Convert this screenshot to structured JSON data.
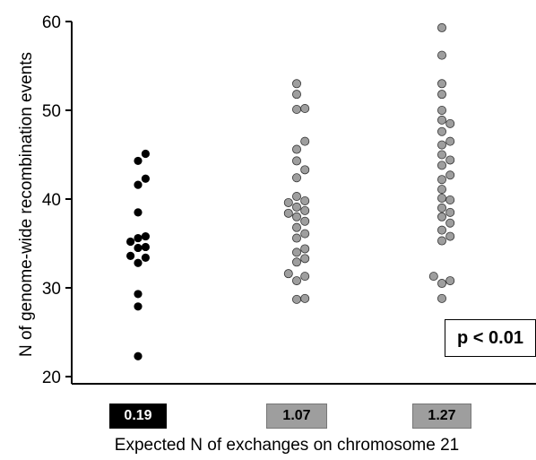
{
  "chart_data": {
    "type": "scatter",
    "xlabel": "Expected N of exchanges on chromosome 21",
    "ylabel": "N of genome-wide recombination events",
    "ylim": [
      20,
      60
    ],
    "yticks": [
      "20",
      "30",
      "40",
      "50",
      "60"
    ],
    "categories": [
      "0.19",
      "1.07",
      "1.27"
    ],
    "category_colors": [
      "#000000",
      "#9e9e9e",
      "#9e9e9e"
    ],
    "annotation": "p < 0.01",
    "series": [
      {
        "category": "0.19",
        "color": "#000000",
        "values": [
          45.1,
          44.3,
          42.3,
          41.6,
          38.5,
          35.8,
          35.6,
          35.2,
          34.6,
          34.5,
          33.6,
          33.4,
          32.8,
          29.3,
          27.9,
          22.3
        ]
      },
      {
        "category": "1.07",
        "color": "#9e9e9e",
        "values": [
          53.0,
          51.8,
          50.2,
          50.1,
          46.5,
          45.6,
          44.3,
          43.3,
          42.4,
          40.3,
          39.8,
          39.6,
          39.1,
          38.7,
          38.4,
          38.0,
          37.5,
          36.8,
          36.1,
          35.6,
          34.4,
          34.0,
          33.3,
          32.9,
          31.6,
          31.3,
          30.8,
          28.8,
          28.7
        ]
      },
      {
        "category": "1.27",
        "color": "#9e9e9e",
        "values": [
          59.3,
          56.2,
          53.0,
          51.8,
          50.0,
          48.9,
          48.5,
          47.6,
          46.5,
          46.1,
          45.0,
          44.4,
          43.8,
          42.7,
          42.2,
          41.1,
          40.1,
          39.9,
          39.0,
          38.5,
          38.0,
          37.3,
          36.5,
          35.8,
          35.3,
          31.3,
          30.8,
          30.5,
          28.8
        ]
      }
    ]
  }
}
